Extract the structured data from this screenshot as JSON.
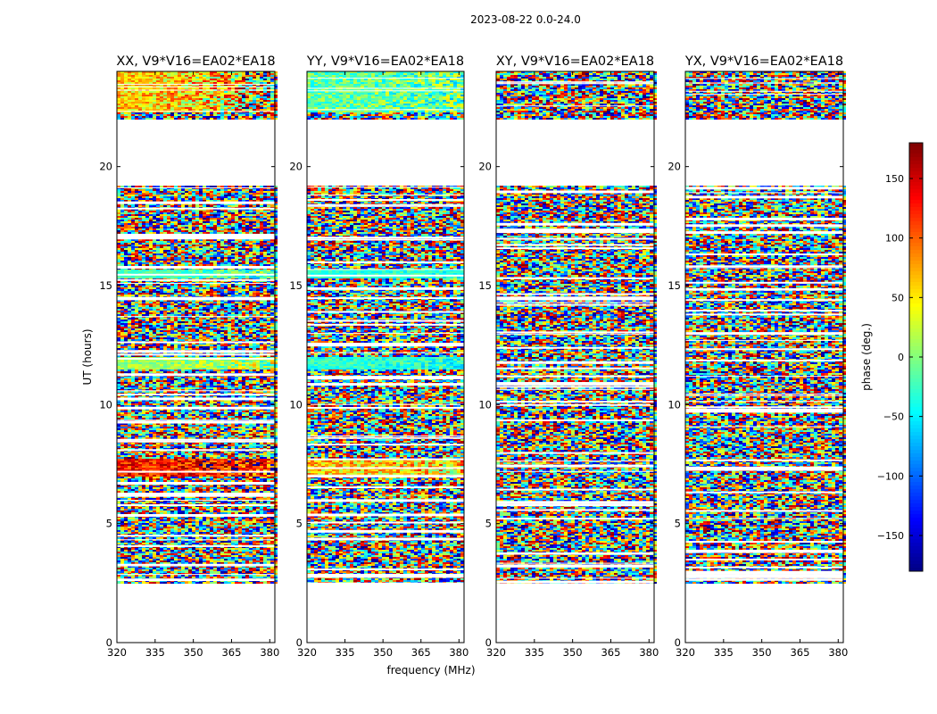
{
  "figure": {
    "suptitle": "2023-08-22 0.0-24.0",
    "xlabel": "frequency (MHz)",
    "ylabel": "UT (hours)",
    "cbar_label": "phase (deg.)",
    "cbar_ticks": [
      150,
      100,
      50,
      0,
      -50,
      -100,
      -150
    ],
    "cbar_range": [
      -180,
      180
    ]
  },
  "chart_data": [
    {
      "type": "heatmap",
      "title": "XX, V9*V16=EA02*EA18",
      "x_ticks": [
        320,
        335,
        350,
        365,
        380
      ],
      "y_ticks": [
        0,
        5,
        10,
        15,
        20
      ],
      "xlim": [
        320,
        382
      ],
      "ylim": [
        0,
        24
      ],
      "data_hours": [
        [
          2.5,
          19.2
        ],
        [
          22.0,
          24.0
        ]
      ],
      "coherent_bands": [
        {
          "hours": [
            22.3,
            24.0
          ],
          "phase": 60,
          "spread": 45,
          "slope": 2.0
        },
        {
          "hours": [
            15.3,
            15.7
          ],
          "phase": -20,
          "spread": 20,
          "slope": 1.5
        },
        {
          "hours": [
            11.5,
            12.0
          ],
          "phase": 10,
          "spread": 25,
          "slope": 1.5
        },
        {
          "hours": [
            7.0,
            7.7
          ],
          "phase": 130,
          "spread": 40,
          "slope": 0.8
        }
      ]
    },
    {
      "type": "heatmap",
      "title": "YY, V9*V16=EA02*EA18",
      "x_ticks": [
        320,
        335,
        350,
        365,
        380
      ],
      "y_ticks": [
        0,
        5,
        10,
        15,
        20
      ],
      "xlim": [
        320,
        382
      ],
      "ylim": [
        0,
        24
      ],
      "data_hours": [
        [
          2.5,
          19.2
        ],
        [
          22.0,
          24.0
        ]
      ],
      "coherent_bands": [
        {
          "hours": [
            22.3,
            24.0
          ],
          "phase": -10,
          "spread": 40,
          "slope": 0.5
        },
        {
          "hours": [
            15.3,
            15.7
          ],
          "phase": -30,
          "spread": 20,
          "slope": 0.5
        },
        {
          "hours": [
            11.5,
            12.0
          ],
          "phase": -30,
          "spread": 25,
          "slope": 0.5
        },
        {
          "hours": [
            7.0,
            7.7
          ],
          "phase": 60,
          "spread": 50,
          "slope": 0.5
        }
      ]
    },
    {
      "type": "heatmap",
      "title": "XY, V9*V16=EA02*EA18",
      "x_ticks": [
        320,
        335,
        350,
        365,
        380
      ],
      "y_ticks": [
        0,
        5,
        10,
        15,
        20
      ],
      "xlim": [
        320,
        382
      ],
      "ylim": [
        0,
        24
      ],
      "data_hours": [
        [
          2.5,
          19.2
        ],
        [
          22.0,
          24.0
        ]
      ],
      "coherent_bands": []
    },
    {
      "type": "heatmap",
      "title": "YX, V9*V16=EA02*EA18",
      "x_ticks": [
        320,
        335,
        350,
        365,
        380
      ],
      "y_ticks": [
        0,
        5,
        10,
        15,
        20
      ],
      "xlim": [
        320,
        382
      ],
      "ylim": [
        0,
        24
      ],
      "data_hours": [
        [
          2.5,
          19.2
        ],
        [
          22.0,
          24.0
        ]
      ],
      "coherent_bands": []
    }
  ]
}
